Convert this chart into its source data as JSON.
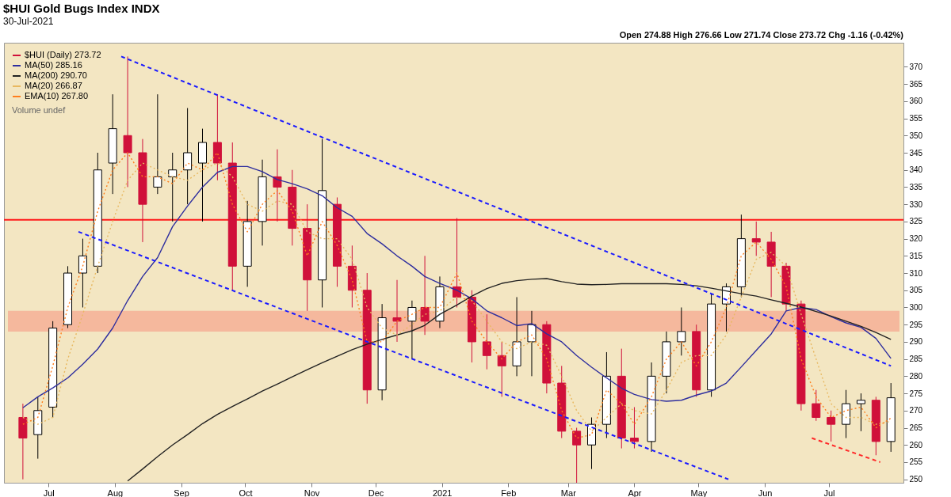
{
  "chart_data": {
    "type": "candlestick",
    "title": "$HUI Gold Bugs Index INDX",
    "subtitle": "30-Jul-2021",
    "annotations": [
      "Open 274.88 High 276.66 Low 271.74 Close 273.72 Chg -1.16 (-0.42%)",
      "Volume undef"
    ],
    "x": [
      "2020-06-19",
      "2020-06-26",
      "2020-07-03",
      "2020-07-10",
      "2020-07-17",
      "2020-07-24",
      "2020-07-31",
      "2020-08-07",
      "2020-08-14",
      "2020-08-21",
      "2020-08-28",
      "2020-09-04",
      "2020-09-11",
      "2020-09-18",
      "2020-09-25",
      "2020-10-02",
      "2020-10-09",
      "2020-10-16",
      "2020-10-23",
      "2020-10-30",
      "2020-11-06",
      "2020-11-13",
      "2020-11-20",
      "2020-11-27",
      "2020-12-04",
      "2020-12-11",
      "2020-12-18",
      "2020-12-24",
      "2020-12-31",
      "2021-01-08",
      "2021-01-15",
      "2021-01-22",
      "2021-01-29",
      "2021-02-05",
      "2021-02-12",
      "2021-02-19",
      "2021-02-26",
      "2021-03-05",
      "2021-03-12",
      "2021-03-19",
      "2021-03-26",
      "2021-04-01",
      "2021-04-09",
      "2021-04-16",
      "2021-04-23",
      "2021-04-30",
      "2021-05-07",
      "2021-05-14",
      "2021-05-21",
      "2021-05-28",
      "2021-06-04",
      "2021-06-11",
      "2021-06-18",
      "2021-06-25",
      "2021-07-02",
      "2021-07-09",
      "2021-07-16",
      "2021-07-23",
      "2021-07-30"
    ],
    "series": [
      {
        "name": "$HUI (Daily) 273.72",
        "color": "#d0103a",
        "colors": [
          "#d0103a",
          "#ffffff",
          "#ffffff",
          "#ffffff",
          "#ffffff",
          "#ffffff",
          "#ffffff",
          "#d0103a",
          "#d0103a",
          "#ffffff",
          "#ffffff",
          "#ffffff",
          "#ffffff",
          "#d0103a",
          "#d0103a",
          "#ffffff",
          "#ffffff",
          "#d0103a",
          "#d0103a",
          "#d0103a",
          "#ffffff",
          "#d0103a",
          "#d0103a",
          "#d0103a",
          "#ffffff",
          "#d0103a",
          "#ffffff",
          "#d0103a",
          "#ffffff",
          "#d0103a",
          "#d0103a",
          "#d0103a",
          "#d0103a",
          "#ffffff",
          "#ffffff",
          "#d0103a",
          "#d0103a",
          "#d0103a",
          "#ffffff",
          "#ffffff",
          "#d0103a",
          "#d0103a",
          "#ffffff",
          "#ffffff",
          "#ffffff",
          "#d0103a",
          "#ffffff",
          "#ffffff",
          "#ffffff",
          "#d0103a",
          "#d0103a",
          "#d0103a",
          "#d0103a",
          "#d0103a",
          "#d0103a",
          "#ffffff",
          "#ffffff",
          "#d0103a",
          "#ffffff"
        ],
        "ohlc": [
          [
            268,
            272,
            250,
            262
          ],
          [
            263,
            274,
            256,
            270
          ],
          [
            271,
            296,
            268,
            294
          ],
          [
            295,
            312,
            294,
            310
          ],
          [
            310,
            320,
            300,
            315
          ],
          [
            312,
            345,
            310,
            340
          ],
          [
            342,
            362,
            333,
            352
          ],
          [
            350,
            373,
            335,
            345
          ],
          [
            345,
            349,
            319,
            330
          ],
          [
            335,
            362,
            333,
            338
          ],
          [
            338,
            345,
            325,
            340
          ],
          [
            340,
            358,
            330,
            345
          ],
          [
            342,
            352,
            325,
            348
          ],
          [
            348,
            362,
            337,
            342
          ],
          [
            342,
            348,
            305,
            312
          ],
          [
            312,
            331,
            306,
            325
          ],
          [
            325,
            343,
            318,
            338
          ],
          [
            338,
            346,
            325,
            335
          ],
          [
            335,
            340,
            318,
            323
          ],
          [
            323,
            330,
            299,
            308
          ],
          [
            308,
            349,
            300,
            334
          ],
          [
            330,
            332,
            306,
            312
          ],
          [
            312,
            318,
            300,
            305
          ],
          [
            305,
            310,
            272,
            276
          ],
          [
            276,
            301,
            273,
            297
          ],
          [
            297,
            308,
            290,
            296
          ],
          [
            296,
            302,
            285,
            300
          ],
          [
            300,
            315,
            292,
            296
          ],
          [
            296,
            309,
            294,
            306
          ],
          [
            306,
            326,
            300,
            303
          ],
          [
            303,
            305,
            284,
            290
          ],
          [
            290,
            298,
            282,
            286
          ],
          [
            286,
            290,
            274,
            283
          ],
          [
            283,
            303,
            280,
            290
          ],
          [
            290,
            299,
            280,
            295
          ],
          [
            295,
            296,
            275,
            278
          ],
          [
            278,
            283,
            262,
            264
          ],
          [
            264,
            265,
            249,
            260
          ],
          [
            260,
            268,
            253,
            266
          ],
          [
            266,
            287,
            262,
            280
          ],
          [
            280,
            288,
            259,
            262
          ],
          [
            262,
            271,
            259,
            261
          ],
          [
            261,
            284,
            258,
            280
          ],
          [
            280,
            293,
            275,
            290
          ],
          [
            290,
            300,
            286,
            293
          ],
          [
            293,
            295,
            274,
            276
          ],
          [
            276,
            304,
            274,
            301
          ],
          [
            301,
            307,
            293,
            306
          ],
          [
            306,
            327,
            303,
            320
          ],
          [
            320,
            325,
            315,
            319
          ],
          [
            319,
            322,
            303,
            312
          ],
          [
            312,
            313,
            299,
            301
          ],
          [
            301,
            302,
            270,
            272
          ],
          [
            272,
            276,
            267,
            268
          ],
          [
            268,
            270,
            261,
            266
          ],
          [
            266,
            276,
            262,
            272
          ],
          [
            272,
            275,
            264,
            273
          ],
          [
            273,
            274,
            257,
            261
          ],
          [
            261,
            278,
            258,
            273.72
          ]
        ]
      },
      {
        "type": "line",
        "name": "MA(50) 285.16",
        "color": "#2e2e9e",
        "values": [
          270.8,
          274,
          276.6,
          279.5,
          283.5,
          287.9,
          294,
          302,
          309,
          314.5,
          323.5,
          329.5,
          335,
          339.3,
          341,
          341,
          339.5,
          337.2,
          336,
          334.5,
          332.5,
          329,
          326.5,
          321.5,
          318.5,
          315,
          312,
          309,
          307,
          305,
          302.5,
          299,
          297,
          294.7,
          295.3,
          292.3,
          290,
          286,
          282.6,
          279.5,
          276.5,
          274.7,
          273.2,
          272.7,
          273,
          274.5,
          275.7,
          278,
          282.7,
          287.5,
          292.3,
          299,
          300,
          299.4,
          297.3,
          295.5,
          294.2,
          291,
          285.16
        ]
      },
      {
        "type": "line",
        "name": "MA(200) 290.70",
        "color": "#222222",
        "values": [
          null,
          null,
          null,
          null,
          null,
          null,
          null,
          249.5,
          253,
          256.6,
          260,
          263,
          266.2,
          268.9,
          271.2,
          273.4,
          275.7,
          277.7,
          279.8,
          281.9,
          283.9,
          285.8,
          287.7,
          289.3,
          290.7,
          292,
          293.2,
          294.8,
          298,
          300.7,
          303.3,
          305.5,
          307,
          307.8,
          308.2,
          308.4,
          307.5,
          306.8,
          306.6,
          306.7,
          306.9,
          306.9,
          306.9,
          306.9,
          306.7,
          306.3,
          305.6,
          304.8,
          304,
          303.3,
          302.2,
          301.2,
          300.1,
          298.8,
          297.5,
          296,
          294.5,
          292.7,
          290.7
        ]
      },
      {
        "type": "line",
        "name": "MA(20) 266.87",
        "color": "#e8b860",
        "line_style": "dotted",
        "values": [
          268,
          266,
          268,
          285,
          298,
          312,
          325,
          337,
          342,
          340,
          338,
          337,
          340,
          342,
          338,
          330,
          328,
          331,
          330,
          322,
          320,
          320,
          314,
          300,
          294,
          292,
          295,
          298,
          299,
          303,
          302,
          296,
          290,
          288,
          290,
          289,
          280,
          270,
          264,
          268,
          272,
          270,
          269,
          276,
          284,
          286,
          286,
          292,
          303,
          314,
          316,
          312,
          298,
          285,
          272,
          268,
          268,
          266,
          266.87
        ]
      },
      {
        "type": "line",
        "name": "EMA(10) 267.80",
        "color": "#ff7f1e",
        "line_style": "dotted",
        "values": [
          266,
          268,
          283,
          300,
          312,
          328,
          340,
          345,
          338,
          338,
          336,
          342,
          340,
          345,
          330,
          322,
          330,
          334,
          328,
          315,
          325,
          318,
          308,
          290,
          290,
          296,
          298,
          300,
          300,
          310,
          296,
          290,
          285,
          290,
          292,
          285,
          270,
          262,
          263,
          276,
          272,
          266,
          274,
          285,
          290,
          283,
          290,
          300,
          315,
          319,
          314,
          306,
          285,
          274,
          268,
          270,
          271,
          265,
          267.8
        ]
      },
      {
        "type": "line",
        "color": "#1a1aff",
        "line_style": "dashed",
        "x": [
          "2020-08-04",
          "2021-07-30"
        ],
        "values": [
          373,
          283
        ]
      },
      {
        "type": "line",
        "color": "#1a1aff",
        "line_style": "dashed",
        "x": [
          "2020-07-15",
          "2021-05-15"
        ],
        "values": [
          322,
          250
        ]
      },
      {
        "type": "line",
        "color": "#ff2a2a",
        "line_style": "dashed",
        "x": [
          "2021-06-23",
          "2021-07-25"
        ],
        "values": [
          262,
          255
        ]
      }
    ],
    "ref_lines": [
      {
        "axis": "y",
        "value": 325.5,
        "color": "#ff1a1a"
      }
    ],
    "bands": [
      {
        "axis": "y",
        "from": 293,
        "to": 299,
        "color": "#f5a890"
      }
    ],
    "xlim": [
      "2020-06-12",
      "2021-08-03"
    ],
    "xticks": [
      {
        "value": "2020-07-01",
        "label": "Jul"
      },
      {
        "value": "2020-08-01",
        "label": "Aug"
      },
      {
        "value": "2020-09-01",
        "label": "Sep"
      },
      {
        "value": "2020-10-01",
        "label": "Oct"
      },
      {
        "value": "2020-11-01",
        "label": "Nov"
      },
      {
        "value": "2020-12-01",
        "label": "Dec"
      },
      {
        "value": "2021-01-01",
        "label": "2021"
      },
      {
        "value": "2021-02-01",
        "label": "Feb"
      },
      {
        "value": "2021-03-01",
        "label": "Mar"
      },
      {
        "value": "2021-04-01",
        "label": "Apr"
      },
      {
        "value": "2021-05-01",
        "label": "May"
      },
      {
        "value": "2021-06-01",
        "label": "Jun"
      },
      {
        "value": "2021-07-01",
        "label": "Jul"
      }
    ],
    "ylim": [
      249,
      377
    ],
    "yticks": [
      250,
      255,
      260,
      265,
      270,
      275,
      280,
      285,
      290,
      295,
      300,
      305,
      310,
      315,
      320,
      325,
      330,
      335,
      340,
      345,
      350,
      355,
      360,
      365,
      370
    ],
    "legend": "top left"
  }
}
